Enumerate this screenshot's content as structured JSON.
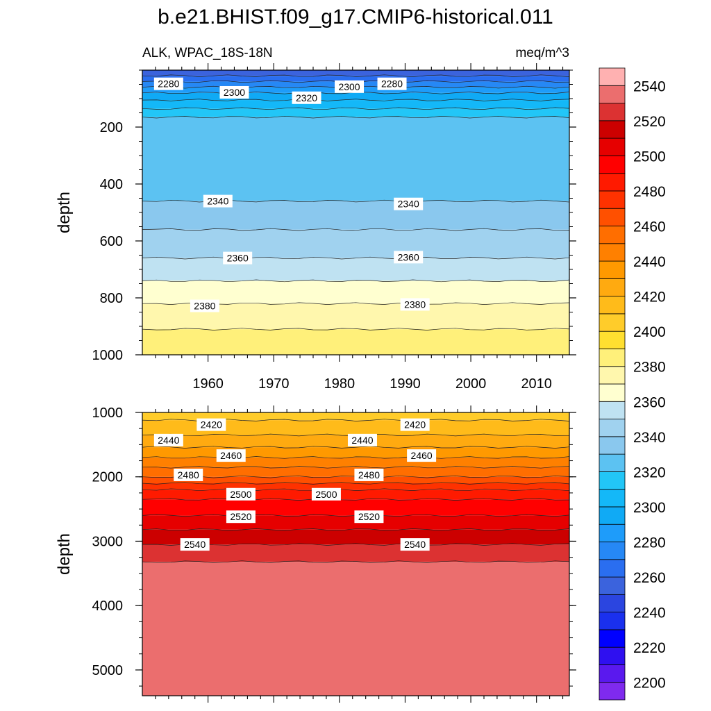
{
  "title": "b.e21.BHIST.f09_g17.CMIP6-historical.011",
  "colors": {
    "levels": [
      2200,
      2210,
      2220,
      2230,
      2240,
      2250,
      2260,
      2270,
      2280,
      2290,
      2300,
      2310,
      2320,
      2330,
      2340,
      2350,
      2360,
      2370,
      2380,
      2390,
      2400,
      2410,
      2420,
      2430,
      2440,
      2450,
      2460,
      2470,
      2480,
      2490,
      2500,
      2510,
      2520,
      2530,
      2540,
      2550
    ],
    "fills": [
      "#7f2aee",
      "#5a19ee",
      "#2f10f0",
      "#0000ff",
      "#1a30ee",
      "#2b45e0",
      "#3b63dd",
      "#2a6ef0",
      "#2688f5",
      "#1e9cfa",
      "#10aaf5",
      "#14b8f8",
      "#22c6f7",
      "#5cc2f2",
      "#8ac8ee",
      "#a0d2ef",
      "#bfe2f2",
      "#ffffd0",
      "#fff7ad",
      "#fff07a",
      "#ffdf30",
      "#ffcc2a",
      "#ffbb1a",
      "#ffaa10",
      "#ff9900",
      "#ff8000",
      "#ff6e00",
      "#ff5000",
      "#ff3200",
      "#ff1a00",
      "#ff0000",
      "#e60000",
      "#cc0000",
      "#dc3232",
      "#eb6e6e",
      "#ffb1b1"
    ]
  },
  "chart_data": [
    {
      "type": "contour",
      "panel": "upper",
      "left_label": "ALK, WPAC_18S-18N",
      "right_label": "meq/m^3",
      "ylabel": "depth",
      "ylim": [
        0,
        1000
      ],
      "y_reversed": true,
      "y_ticks": [
        200,
        400,
        600,
        800,
        1000
      ],
      "y_tick_labels": [
        "200",
        "400",
        "600",
        "800",
        "1000"
      ],
      "xlim": [
        1950,
        2015
      ],
      "x_ticks": [
        1960,
        1970,
        1980,
        1990,
        2000,
        2010
      ],
      "x_tick_labels": [
        "1960",
        "1970",
        "1980",
        "1990",
        "2000",
        "2010"
      ],
      "bands": [
        {
          "from": 0,
          "to": 20,
          "value": 2260
        },
        {
          "from": 20,
          "to": 40,
          "value": 2270
        },
        {
          "from": 40,
          "to": 60,
          "value": 2280
        },
        {
          "from": 60,
          "to": 80,
          "value": 2290
        },
        {
          "from": 80,
          "to": 105,
          "value": 2300
        },
        {
          "from": 105,
          "to": 135,
          "value": 2310
        },
        {
          "from": 135,
          "to": 165,
          "value": 2320
        },
        {
          "from": 165,
          "to": 460,
          "value": 2330
        },
        {
          "from": 460,
          "to": 560,
          "value": 2340
        },
        {
          "from": 560,
          "to": 660,
          "value": 2350
        },
        {
          "from": 660,
          "to": 740,
          "value": 2360
        },
        {
          "from": 740,
          "to": 820,
          "value": 2370
        },
        {
          "from": 820,
          "to": 910,
          "value": 2380
        },
        {
          "from": 910,
          "to": 1000,
          "value": 2390
        }
      ],
      "contour_labels": [
        {
          "text": "2280",
          "x": 1954,
          "y": 48
        },
        {
          "text": "2300",
          "x": 1964,
          "y": 78
        },
        {
          "text": "2320",
          "x": 1975,
          "y": 97
        },
        {
          "text": "2300",
          "x": 1981.5,
          "y": 58
        },
        {
          "text": "2280",
          "x": 1988,
          "y": 48
        },
        {
          "text": "2340",
          "x": 1961.5,
          "y": 460
        },
        {
          "text": "2340",
          "x": 1990.5,
          "y": 470
        },
        {
          "text": "2360",
          "x": 1964.5,
          "y": 660
        },
        {
          "text": "2360",
          "x": 1990.5,
          "y": 657
        },
        {
          "text": "2380",
          "x": 1959.5,
          "y": 828
        },
        {
          "text": "2380",
          "x": 1991.5,
          "y": 823
        }
      ]
    },
    {
      "type": "contour",
      "panel": "lower",
      "ylabel": "depth",
      "ylim": [
        1000,
        5400
      ],
      "y_reversed": true,
      "y_ticks": [
        1000,
        2000,
        3000,
        4000,
        5000
      ],
      "y_tick_labels": [
        "1000",
        "2000",
        "3000",
        "4000",
        "5000"
      ],
      "xlim": [
        1950,
        2015
      ],
      "x_ticks": [
        1960,
        1970,
        1980,
        1990,
        2000,
        2010
      ],
      "bands": [
        {
          "from": 1000,
          "to": 1120,
          "value": 2410
        },
        {
          "from": 1120,
          "to": 1350,
          "value": 2420
        },
        {
          "from": 1350,
          "to": 1540,
          "value": 2430
        },
        {
          "from": 1540,
          "to": 1700,
          "value": 2440
        },
        {
          "from": 1700,
          "to": 1850,
          "value": 2450
        },
        {
          "from": 1850,
          "to": 2000,
          "value": 2460
        },
        {
          "from": 2000,
          "to": 2100,
          "value": 2470
        },
        {
          "from": 2100,
          "to": 2200,
          "value": 2480
        },
        {
          "from": 2200,
          "to": 2350,
          "value": 2490
        },
        {
          "from": 2350,
          "to": 2600,
          "value": 2500
        },
        {
          "from": 2600,
          "to": 2820,
          "value": 2510
        },
        {
          "from": 2820,
          "to": 3050,
          "value": 2520
        },
        {
          "from": 3050,
          "to": 3320,
          "value": 2530
        },
        {
          "from": 3320,
          "to": 5400,
          "value": 2540
        }
      ],
      "contour_labels": [
        {
          "text": "2420",
          "x": 1960.5,
          "y": 1190
        },
        {
          "text": "2440",
          "x": 1954,
          "y": 1430
        },
        {
          "text": "2460",
          "x": 1963.5,
          "y": 1670
        },
        {
          "text": "2480",
          "x": 1957,
          "y": 1970
        },
        {
          "text": "2500",
          "x": 1965,
          "y": 2270
        },
        {
          "text": "2520",
          "x": 1965,
          "y": 2620
        },
        {
          "text": "2540",
          "x": 1958,
          "y": 3050
        },
        {
          "text": "2420",
          "x": 1991.5,
          "y": 1190
        },
        {
          "text": "2440",
          "x": 1983.5,
          "y": 1430
        },
        {
          "text": "2460",
          "x": 1992.5,
          "y": 1670
        },
        {
          "text": "2480",
          "x": 1984.5,
          "y": 1970
        },
        {
          "text": "2500",
          "x": 1978,
          "y": 2270
        },
        {
          "text": "2520",
          "x": 1984.5,
          "y": 2620
        },
        {
          "text": "2540",
          "x": 1991.5,
          "y": 3050
        }
      ]
    }
  ],
  "colorbar": {
    "tick_labels": [
      "2200",
      "2220",
      "2240",
      "2260",
      "2280",
      "2300",
      "2320",
      "2340",
      "2360",
      "2380",
      "2400",
      "2420",
      "2440",
      "2460",
      "2480",
      "2500",
      "2520",
      "2540"
    ]
  }
}
